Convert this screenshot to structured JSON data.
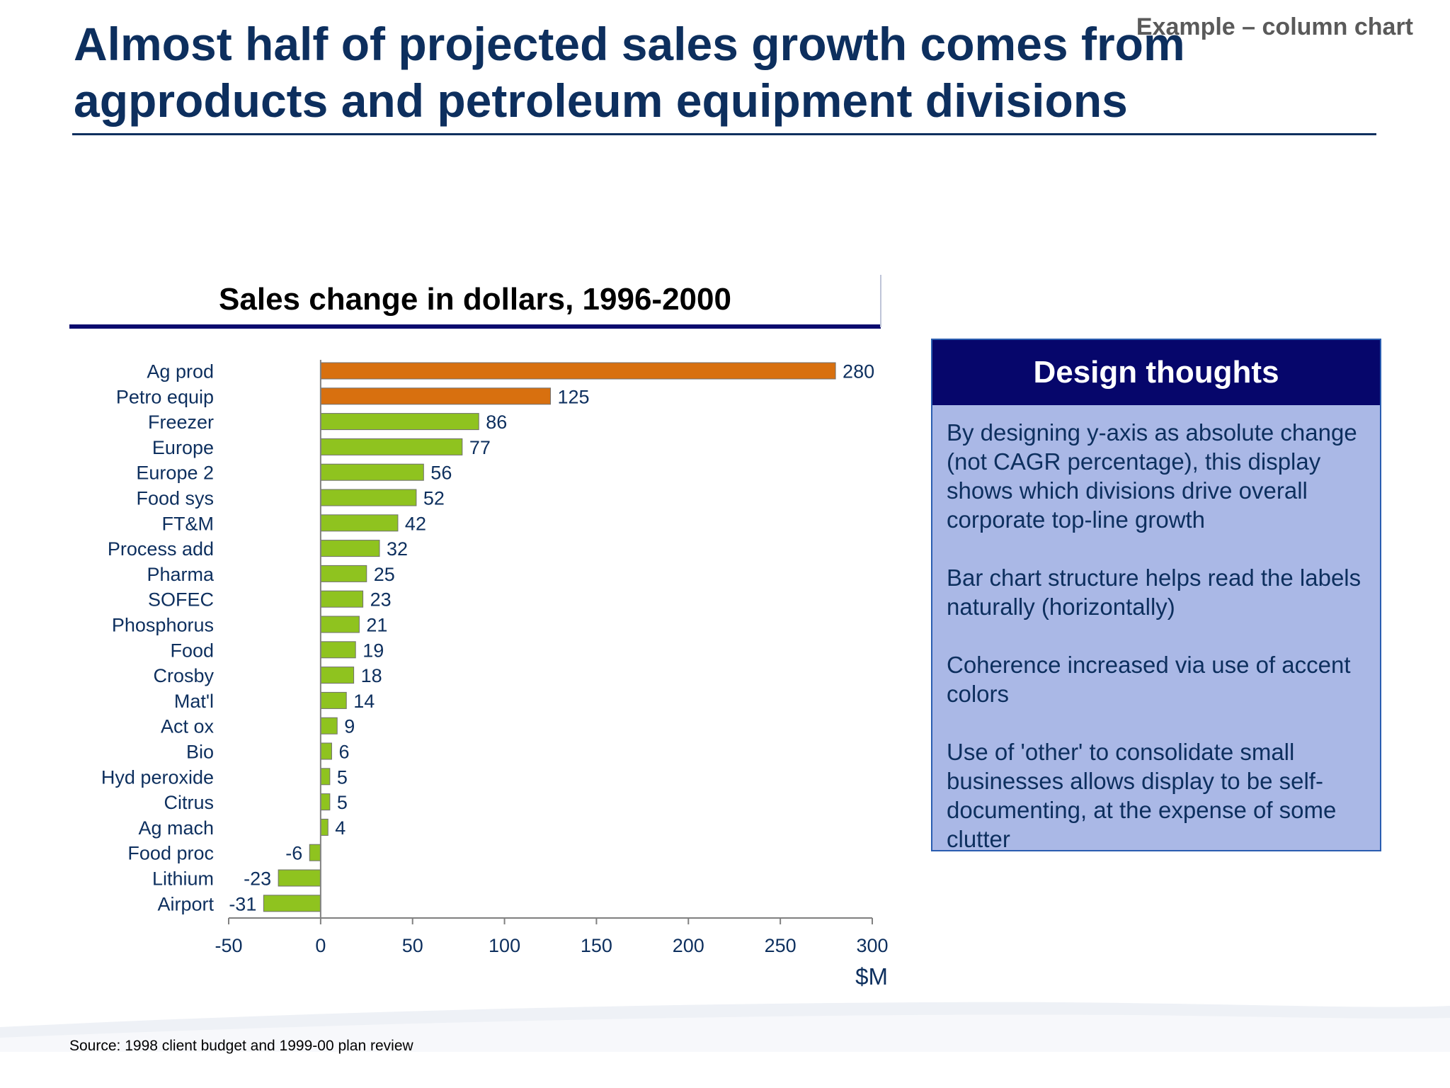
{
  "slide": {
    "title": "Almost half of projected sales growth comes from\nagproducts and petroleum equipment divisions",
    "tag": "Example – column chart",
    "source": "Source: 1998 client budget and 1999-00 plan review"
  },
  "chart_data": {
    "type": "bar",
    "orientation": "horizontal",
    "title": "Sales change in dollars, 1996-2000",
    "xlabel": "$M",
    "xlim": [
      -50,
      300
    ],
    "xticks": [
      -50,
      0,
      50,
      100,
      150,
      200,
      250,
      300
    ],
    "categories": [
      "Ag prod",
      "Petro equip",
      "Freezer",
      "Europe",
      "Europe 2",
      "Food sys",
      "FT&M",
      "Process add",
      "Pharma",
      "SOFEC",
      "Phosphorus",
      "Food",
      "Crosby",
      "Mat'l",
      "Act ox",
      "Bio",
      "Hyd peroxide",
      "Citrus",
      "Ag mach",
      "Food proc",
      "Lithium",
      "Airport"
    ],
    "values": [
      280,
      125,
      86,
      77,
      56,
      52,
      42,
      32,
      25,
      23,
      21,
      19,
      18,
      14,
      9,
      6,
      5,
      5,
      4,
      -6,
      -23,
      -31
    ],
    "colors": [
      "#d8700f",
      "#d8700f",
      "#8fc31f",
      "#8fc31f",
      "#8fc31f",
      "#8fc31f",
      "#8fc31f",
      "#8fc31f",
      "#8fc31f",
      "#8fc31f",
      "#8fc31f",
      "#8fc31f",
      "#8fc31f",
      "#8fc31f",
      "#8fc31f",
      "#8fc31f",
      "#8fc31f",
      "#8fc31f",
      "#8fc31f",
      "#8fc31f",
      "#8fc31f",
      "#8fc31f"
    ],
    "grid": false,
    "legend": "none"
  },
  "design": {
    "heading": "Design thoughts",
    "points": [
      "By designing y-axis as absolute change (not CAGR percentage), this display shows which divisions drive overall corporate top-line growth",
      "Bar chart structure helps read the labels naturally (horizontally)",
      "Coherence increased via use of accent colors",
      "Use of 'other' to consolidate small businesses allows display to be self-documenting, at the expense of some clutter"
    ]
  }
}
